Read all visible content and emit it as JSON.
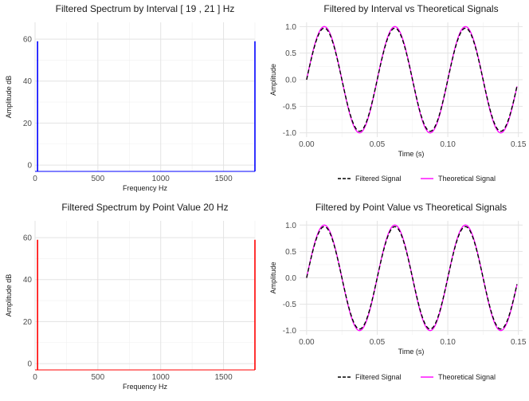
{
  "chart_data": [
    {
      "type": "line",
      "kind": "spectrum",
      "title": "Filtered Spectrum by Interval [ 19 , 21 ] Hz",
      "xlabel": "Frequency Hz",
      "ylabel": "Amplitude dB",
      "xlim": [
        0,
        1750
      ],
      "ylim": [
        -3,
        68
      ],
      "xticks": [
        0,
        500,
        1000,
        1500
      ],
      "yticks": [
        0,
        20,
        40,
        60
      ],
      "grid": true,
      "color": "#0000ff",
      "baseline": -3,
      "peaks": [
        {
          "x": 20,
          "y": 59
        },
        {
          "x": 1750,
          "y": 59
        }
      ]
    },
    {
      "type": "line",
      "kind": "signals",
      "title": "Filtered by Interval vs Theoretical Signals",
      "xlabel": "Time (s)",
      "ylabel": "Amplitude",
      "xlim": [
        -0.005,
        0.153
      ],
      "ylim": [
        -1.08,
        1.08
      ],
      "xticks": [
        0.0,
        0.05,
        0.1,
        0.15
      ],
      "yticks": [
        -1.0,
        -0.5,
        0.0,
        0.5,
        1.0
      ],
      "grid": true,
      "frequency_hz": 20,
      "duration_s": 0.149,
      "legend_position": "bottom",
      "series": [
        {
          "name": "Filtered Signal",
          "color": "#000000",
          "dash": true,
          "amplitude": 0.97
        },
        {
          "name": "Theoretical Signal",
          "color": "#ff00ff",
          "dash": false,
          "amplitude": 1.0
        }
      ]
    },
    {
      "type": "line",
      "kind": "spectrum",
      "title": "Filtered Spectrum by Point Value  20 Hz",
      "xlabel": "Frequency Hz",
      "ylabel": "Amplitude dB",
      "xlim": [
        0,
        1750
      ],
      "ylim": [
        -3,
        68
      ],
      "xticks": [
        0,
        500,
        1000,
        1500
      ],
      "yticks": [
        0,
        20,
        40,
        60
      ],
      "grid": true,
      "color": "#ff0000",
      "baseline": -3,
      "peaks": [
        {
          "x": 20,
          "y": 59
        },
        {
          "x": 1750,
          "y": 59
        }
      ]
    },
    {
      "type": "line",
      "kind": "signals",
      "title": "Filtered by Point Value vs Theoretical Signals",
      "xlabel": "Time (s)",
      "ylabel": "Amplitude",
      "xlim": [
        -0.005,
        0.153
      ],
      "ylim": [
        -1.08,
        1.08
      ],
      "xticks": [
        0.0,
        0.05,
        0.1,
        0.15
      ],
      "yticks": [
        -1.0,
        -0.5,
        0.0,
        0.5,
        1.0
      ],
      "grid": true,
      "frequency_hz": 20,
      "duration_s": 0.149,
      "legend_position": "bottom",
      "series": [
        {
          "name": "Filtered Signal",
          "color": "#000000",
          "dash": true,
          "amplitude": 0.97
        },
        {
          "name": "Theoretical Signal",
          "color": "#ff00ff",
          "dash": false,
          "amplitude": 1.0
        }
      ]
    }
  ]
}
